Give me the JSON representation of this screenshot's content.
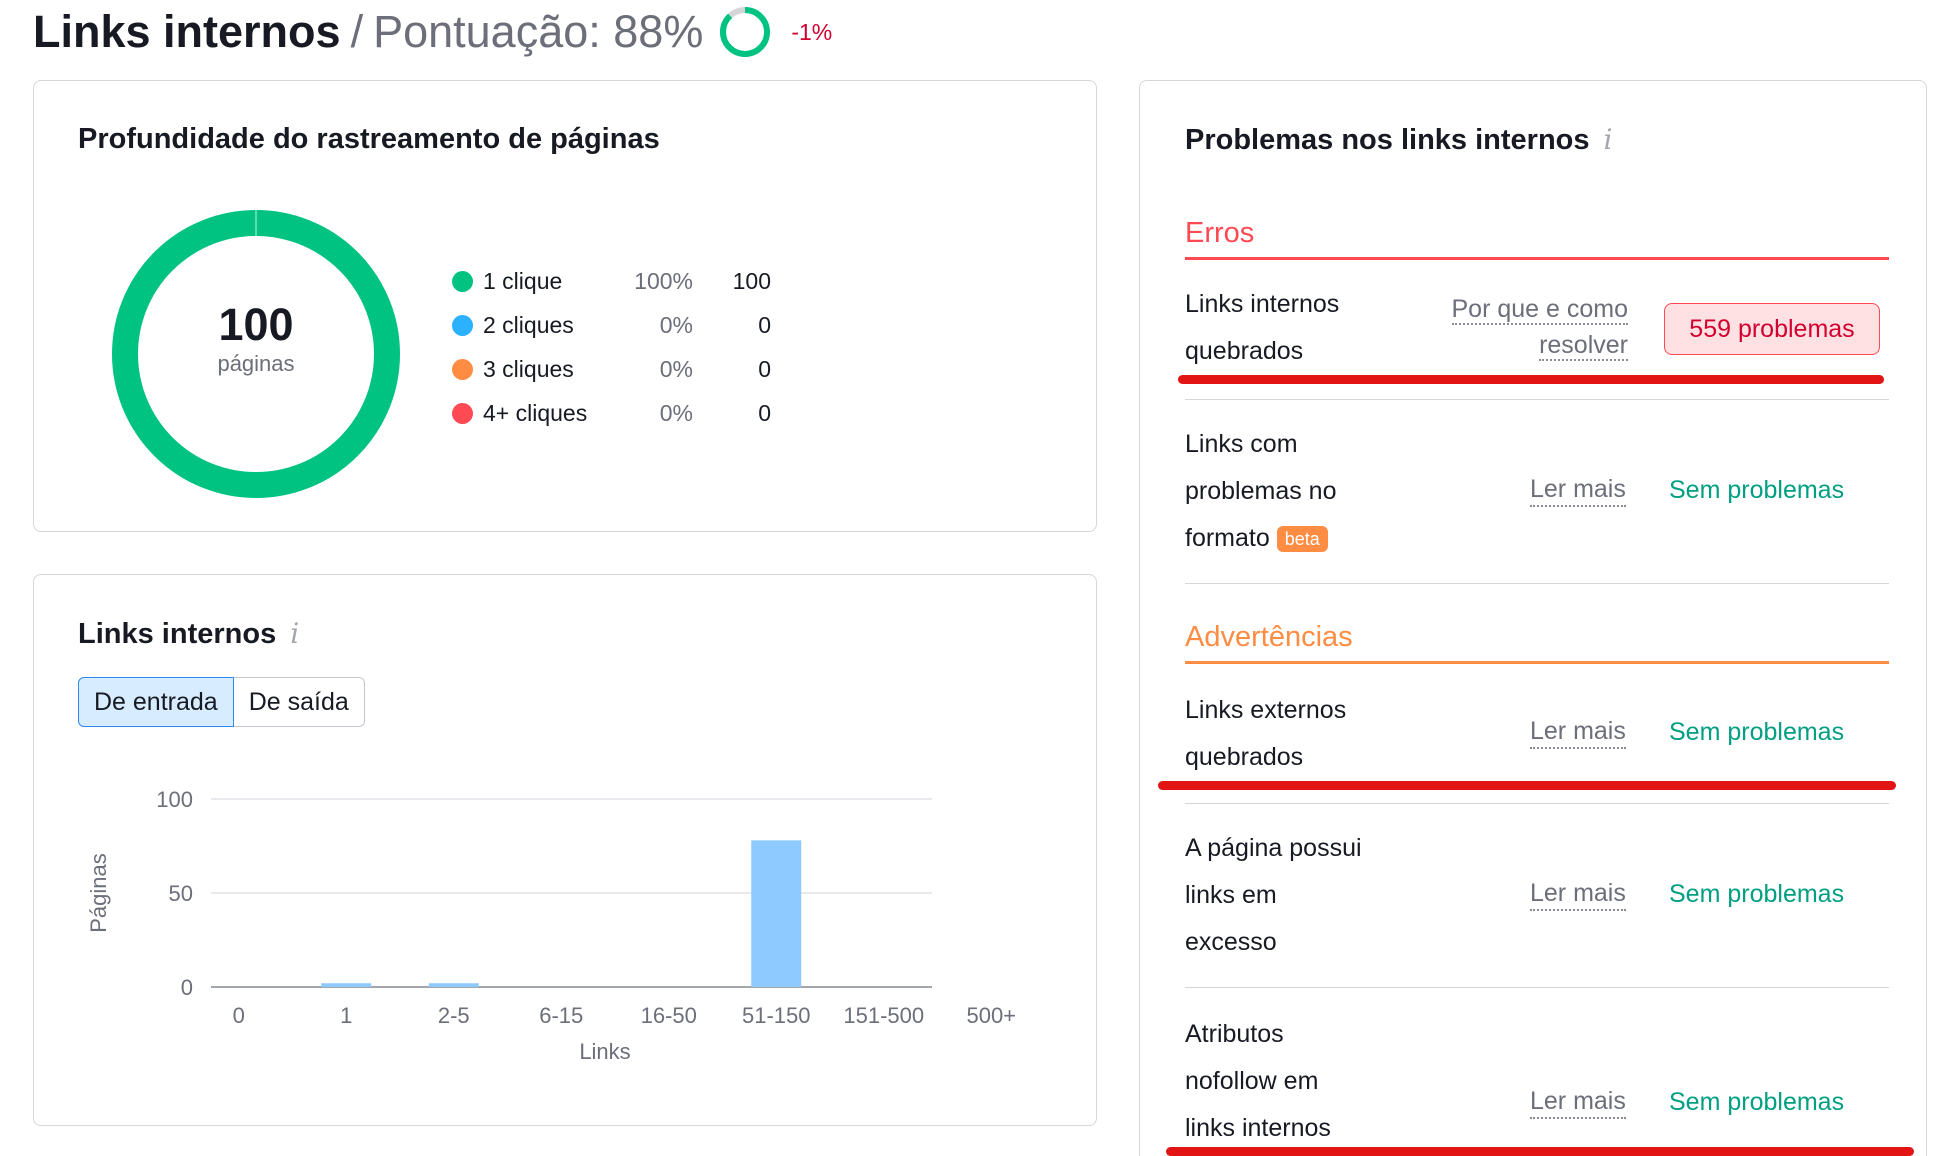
{
  "header": {
    "title": "Links internos",
    "separator": "/",
    "score_text": "Pontuação: 88%",
    "score_value": 88,
    "delta": "-1%"
  },
  "crawl_depth": {
    "title": "Profundidade do rastreamento de páginas",
    "total": "100",
    "total_label": "páginas",
    "legend": [
      {
        "label": "1 clique",
        "pct": "100%",
        "count": "100",
        "color": "#00c281"
      },
      {
        "label": "2 cliques",
        "pct": "0%",
        "count": "0",
        "color": "#2bb1ff"
      },
      {
        "label": "3 cliques",
        "pct": "0%",
        "count": "0",
        "color": "#ff8c43"
      },
      {
        "label": "4+ cliques",
        "pct": "0%",
        "count": "0",
        "color": "#ff4953"
      }
    ]
  },
  "internal_links": {
    "title": "Links internos",
    "tabs": [
      "De entrada",
      "De saída"
    ],
    "active_tab": "De entrada"
  },
  "chart_data": {
    "type": "bar",
    "categories": [
      "0",
      "1",
      "2-5",
      "6-15",
      "16-50",
      "51-150",
      "151-500",
      "500+"
    ],
    "values": [
      0,
      2,
      2,
      0,
      0,
      78,
      0,
      0
    ],
    "xlabel": "Links",
    "ylabel": "Páginas",
    "ylim": [
      0,
      100
    ],
    "yticks": [
      "0",
      "50",
      "100"
    ],
    "grid": true,
    "bar_color": "#8ec9ff"
  },
  "problems": {
    "title": "Problemas nos links internos",
    "errors_title": "Erros",
    "warnings_title": "Advertências",
    "colors": {
      "error": "#ff4953",
      "warning": "#ff8c43",
      "ok": "#009f81"
    },
    "rows": {
      "broken_internal": {
        "line1": "Links internos",
        "line2": "quebrados",
        "link1": "Por que e como",
        "link2": "resolver",
        "badge": "559 problemas"
      },
      "format": {
        "line1": "Links com",
        "line2": "problemas no",
        "line3": "formato",
        "beta": "beta",
        "link": "Ler mais",
        "status": "Sem problemas"
      },
      "broken_external": {
        "line1": "Links externos",
        "line2": "quebrados",
        "link": "Ler mais",
        "status": "Sem problemas"
      },
      "excess": {
        "line1": "A página possui",
        "line2": "links em",
        "line3": "excesso",
        "link": "Ler mais",
        "status": "Sem problemas"
      },
      "nofollow": {
        "line1": "Atributos",
        "line2": "nofollow em",
        "line3": "links internos",
        "link": "Ler mais",
        "status": "Sem problemas"
      }
    }
  }
}
